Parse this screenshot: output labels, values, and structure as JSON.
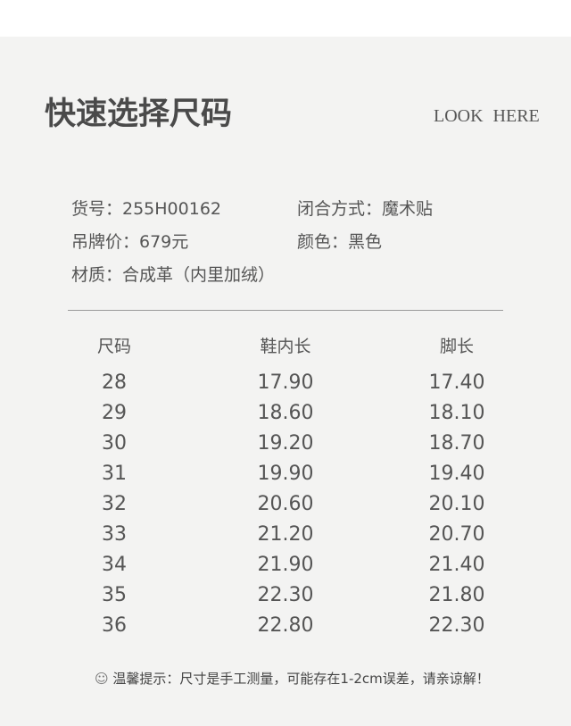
{
  "header": {
    "title": "快速选择尺码",
    "subtitle": "LOOK HERE"
  },
  "info": {
    "item_no": "货号：255H00162",
    "closure": "闭合方式：魔术贴",
    "price": "吊牌价：679元",
    "color": "颜色：黑色",
    "material": "材质：合成革（内里加绒）"
  },
  "table": {
    "columns": [
      "尺码",
      "鞋内长",
      "脚长"
    ],
    "rows": [
      [
        "28",
        "17.90",
        "17.40"
      ],
      [
        "29",
        "18.60",
        "18.10"
      ],
      [
        "30",
        "19.20",
        "18.70"
      ],
      [
        "31",
        "19.90",
        "19.40"
      ],
      [
        "32",
        "20.60",
        "20.10"
      ],
      [
        "33",
        "21.20",
        "20.70"
      ],
      [
        "34",
        "21.90",
        "21.40"
      ],
      [
        "35",
        "22.30",
        "21.80"
      ],
      [
        "36",
        "22.80",
        "22.30"
      ]
    ]
  },
  "note": {
    "icon": "smiley-icon",
    "text": "温馨提示：尺寸是手工测量，可能存在1-2cm误差，请亲谅解！"
  }
}
